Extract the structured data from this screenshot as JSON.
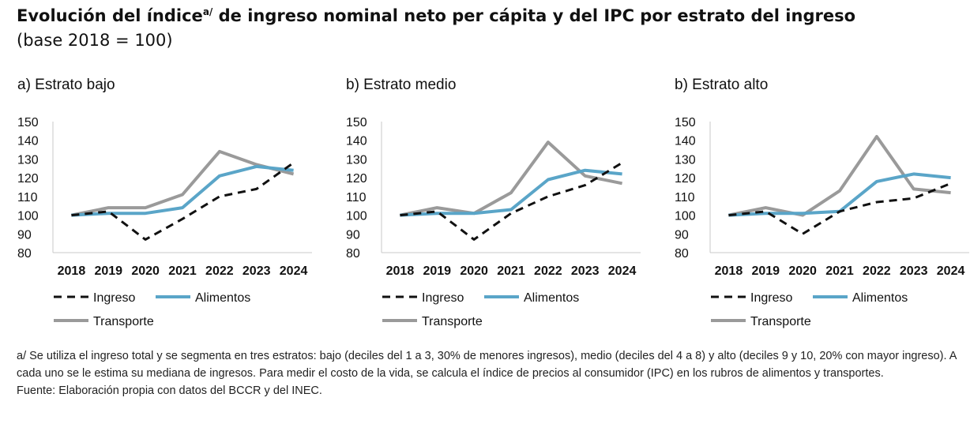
{
  "header": {
    "title": "Evolución del índice",
    "title_sup": "a/",
    "title_rest": " de ingreso nominal neto per cápita y del IPC por estrato del ingreso",
    "subtitle": "(base 2018 = 100)"
  },
  "colors": {
    "ingreso": "#111111",
    "alimentos": "#5aa5c8",
    "transporte": "#9a9a9a"
  },
  "chart_data": [
    {
      "type": "line",
      "title": "a) Estrato bajo",
      "categories": [
        "2018",
        "2019",
        "2020",
        "2021",
        "2022",
        "2023",
        "2024"
      ],
      "ylim": [
        80,
        150
      ],
      "yticks": [
        "150",
        "140",
        "130",
        "120",
        "110",
        "100",
        "90",
        "80"
      ],
      "xlabel": "",
      "ylabel": "",
      "series": [
        {
          "name": "Ingreso",
          "values": [
            100,
            102,
            87,
            98,
            110,
            114,
            128
          ]
        },
        {
          "name": "Alimentos",
          "values": [
            100,
            101,
            101,
            104,
            121,
            126,
            124
          ]
        },
        {
          "name": "Transporte",
          "values": [
            100,
            104,
            104,
            111,
            134,
            127,
            122
          ]
        }
      ]
    },
    {
      "type": "line",
      "title": "b) Estrato medio",
      "categories": [
        "2018",
        "2019",
        "2020",
        "2021",
        "2022",
        "2023",
        "2024"
      ],
      "ylim": [
        80,
        150
      ],
      "yticks": [
        "150",
        "140",
        "130",
        "120",
        "110",
        "100",
        "90",
        "80"
      ],
      "xlabel": "",
      "ylabel": "",
      "series": [
        {
          "name": "Ingreso",
          "values": [
            100,
            102,
            87,
            101,
            110,
            116,
            128
          ]
        },
        {
          "name": "Alimentos",
          "values": [
            100,
            101,
            101,
            103,
            119,
            124,
            122
          ]
        },
        {
          "name": "Transporte",
          "values": [
            100,
            104,
            101,
            112,
            139,
            121,
            117
          ]
        }
      ]
    },
    {
      "type": "line",
      "title": "b) Estrato alto",
      "categories": [
        "2018",
        "2019",
        "2020",
        "2021",
        "2022",
        "2023",
        "2024"
      ],
      "ylim": [
        80,
        150
      ],
      "yticks": [
        "150",
        "140",
        "130",
        "120",
        "110",
        "100",
        "90",
        "80"
      ],
      "xlabel": "",
      "ylabel": "",
      "series": [
        {
          "name": "Ingreso",
          "values": [
            100,
            102,
            90,
            102,
            107,
            109,
            117
          ]
        },
        {
          "name": "Alimentos",
          "values": [
            100,
            101,
            101,
            102,
            118,
            122,
            120
          ]
        },
        {
          "name": "Transporte",
          "values": [
            100,
            104,
            100,
            113,
            142,
            114,
            112
          ]
        }
      ]
    }
  ],
  "footnote": {
    "lines": [
      "a/ Se utiliza el ingreso total y se segmenta en tres estratos: bajo (deciles del 1 a 3, 30% de menores ingresos), medio (deciles del 4 a 8) y alto (deciles 9 y 10, 20% con mayor ingreso). A cada uno se le estima su mediana de ingresos. Para medir el costo de la vida, se calcula el índice de precios al consumidor (IPC) en los rubros de alimentos y transportes."
    ],
    "source": "Fuente: Elaboración propia con datos del BCCR y del INEC."
  }
}
